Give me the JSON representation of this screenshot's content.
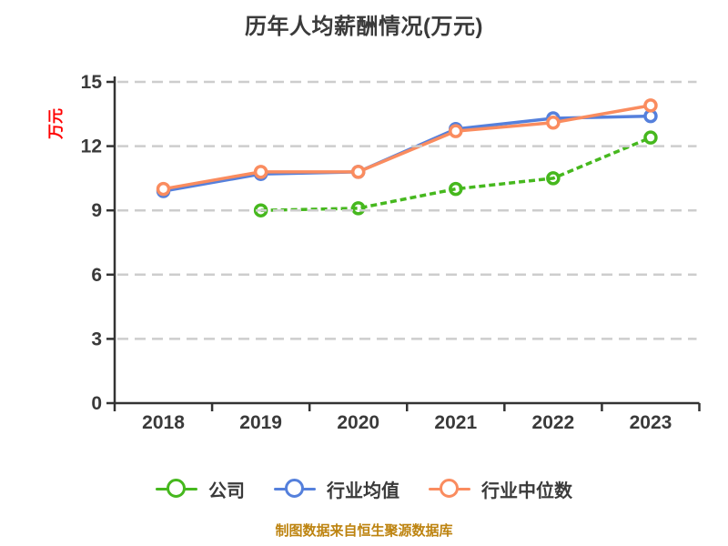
{
  "chart_data": {
    "type": "line",
    "title": "历年人均薪酬情况(万元)",
    "ylabel": "万元",
    "caption": "制图数据来自恒生聚源数据库",
    "categories": [
      "2018",
      "2019",
      "2020",
      "2021",
      "2022",
      "2023"
    ],
    "yticks": [
      0,
      3,
      6,
      9,
      12,
      15
    ],
    "ylim": [
      0,
      15
    ],
    "grid": "horizontal-dashed",
    "legend_position": "bottom",
    "marker": "circle-white-fill",
    "series": [
      {
        "name": "公司",
        "color": "#46b81e",
        "style": "dashed",
        "values": [
          null,
          9.0,
          9.1,
          10.0,
          10.5,
          12.4
        ]
      },
      {
        "name": "行业均值",
        "color": "#5580dc",
        "style": "solid",
        "values": [
          9.9,
          10.7,
          10.8,
          12.8,
          13.3,
          13.4
        ]
      },
      {
        "name": "行业中位数",
        "color": "#fa8c5f",
        "style": "solid",
        "values": [
          10.0,
          10.8,
          10.8,
          12.7,
          13.1,
          13.9
        ]
      }
    ],
    "colors": {
      "axis": "#333333",
      "gridline": "#cdcdcd",
      "tick_text": "#3a3a3a",
      "title_text": "#3a3a3a",
      "ylabel_text": "#ff0000",
      "caption_text": "#bd830f"
    }
  }
}
